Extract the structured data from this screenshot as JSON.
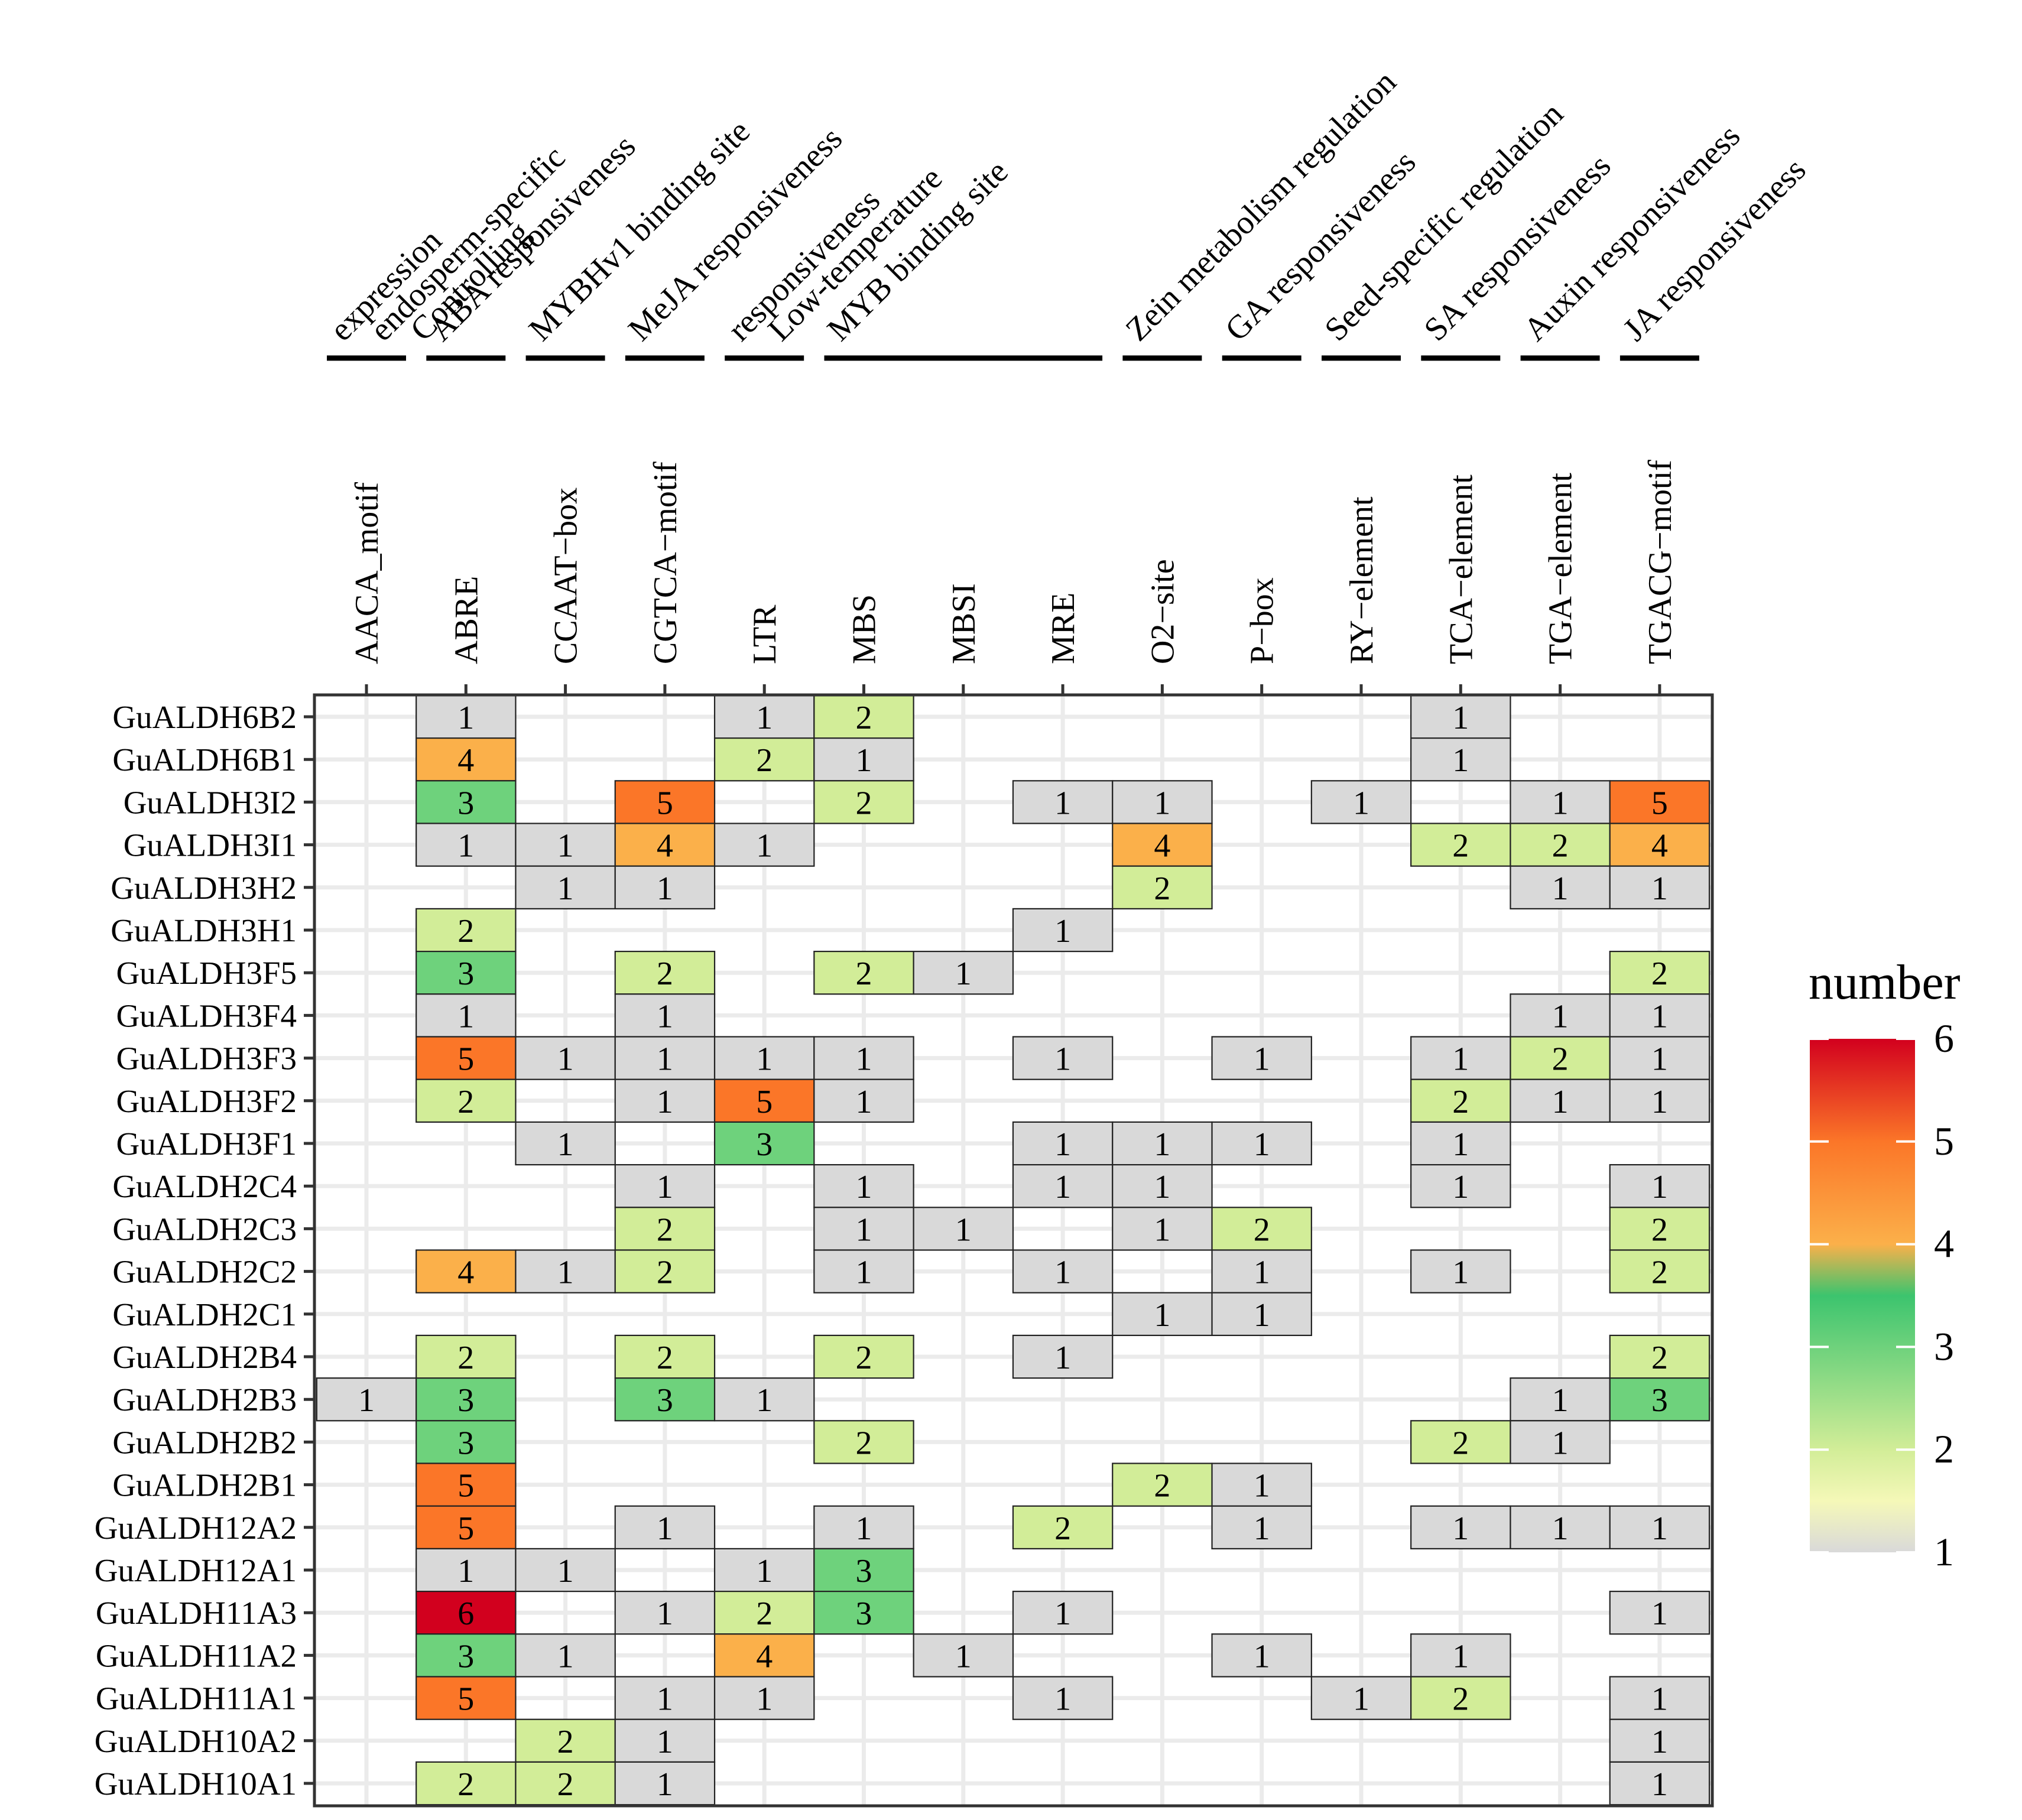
{
  "chart_data": {
    "type": "heatmap",
    "title": "",
    "xlabel": "",
    "ylabel": "",
    "columns": [
      "AACA_motif",
      "ABRE",
      "CCAAT-box",
      "CGTCA-motif",
      "LTR",
      "MBS",
      "MBSI",
      "MRE",
      "O2-site",
      "P-box",
      "RY-element",
      "TCA-element",
      "TGA-element",
      "TGACG-motif"
    ],
    "column_labels": [
      "AACA_motif",
      "ABRE",
      "CCAAT−box",
      "CGTCA−motif",
      "LTR",
      "MBS",
      "MBSI",
      "MRE",
      "O2−site",
      "P−box",
      "RY−element",
      "TCA−element",
      "TGA−element",
      "TGACG−motif"
    ],
    "groups": [
      {
        "label": "Controlling endosperm-specific expression",
        "lines": [
          "Controlling",
          "endosperm-specific",
          "expression"
        ],
        "col_start": 0,
        "col_end": 0
      },
      {
        "label": "ABA responsiveness",
        "lines": [
          "ABA responsiveness"
        ],
        "col_start": 1,
        "col_end": 1
      },
      {
        "label": "MYBHv1 binding site",
        "lines": [
          "MYBHv1 binding site"
        ],
        "col_start": 2,
        "col_end": 2
      },
      {
        "label": "MeJA responsiveness",
        "lines": [
          "MeJA responsiveness"
        ],
        "col_start": 3,
        "col_end": 3
      },
      {
        "label": "Low-temperature responsiveness",
        "lines": [
          "Low-temperature",
          "responsiveness"
        ],
        "col_start": 4,
        "col_end": 4
      },
      {
        "label": "MYB binding site",
        "lines": [
          "MYB binding site"
        ],
        "col_start": 5,
        "col_end": 7
      },
      {
        "label": "Zein metabolism regulation",
        "lines": [
          "Zein metabolism regulation"
        ],
        "col_start": 8,
        "col_end": 8
      },
      {
        "label": "GA responsiveness",
        "lines": [
          "GA responsiveness"
        ],
        "col_start": 9,
        "col_end": 9
      },
      {
        "label": "Seed-specific regulation",
        "lines": [
          "Seed-specific regulation"
        ],
        "col_start": 10,
        "col_end": 10
      },
      {
        "label": "SA responsiveness",
        "lines": [
          "SA responsiveness"
        ],
        "col_start": 11,
        "col_end": 11
      },
      {
        "label": "Auxin responsiveness",
        "lines": [
          "Auxin responsiveness"
        ],
        "col_start": 12,
        "col_end": 12
      },
      {
        "label": "JA responsiveness",
        "lines": [
          "JA responsiveness"
        ],
        "col_start": 13,
        "col_end": 13
      }
    ],
    "rows": [
      "GuALDH6B2",
      "GuALDH6B1",
      "GuALDH3I2",
      "GuALDH3I1",
      "GuALDH3H2",
      "GuALDH3H1",
      "GuALDH3F5",
      "GuALDH3F4",
      "GuALDH3F3",
      "GuALDH3F2",
      "GuALDH3F1",
      "GuALDH2C4",
      "GuALDH2C3",
      "GuALDH2C2",
      "GuALDH2C1",
      "GuALDH2B4",
      "GuALDH2B3",
      "GuALDH2B2",
      "GuALDH2B1",
      "GuALDH12A2",
      "GuALDH12A1",
      "GuALDH11A3",
      "GuALDH11A2",
      "GuALDH11A1",
      "GuALDH10A2",
      "GuALDH10A1"
    ],
    "values": [
      [
        null,
        1,
        null,
        null,
        1,
        2,
        null,
        null,
        null,
        null,
        null,
        1,
        null,
        null
      ],
      [
        null,
        4,
        null,
        null,
        2,
        1,
        null,
        null,
        null,
        null,
        null,
        1,
        null,
        null
      ],
      [
        null,
        3,
        null,
        5,
        null,
        2,
        null,
        1,
        1,
        null,
        1,
        null,
        1,
        5
      ],
      [
        null,
        1,
        1,
        4,
        1,
        null,
        null,
        null,
        4,
        null,
        null,
        2,
        2,
        4
      ],
      [
        null,
        null,
        1,
        1,
        null,
        null,
        null,
        null,
        2,
        null,
        null,
        null,
        1,
        1
      ],
      [
        null,
        2,
        null,
        null,
        null,
        null,
        null,
        1,
        null,
        null,
        null,
        null,
        null,
        null
      ],
      [
        null,
        3,
        null,
        2,
        null,
        2,
        1,
        null,
        null,
        null,
        null,
        null,
        null,
        2
      ],
      [
        null,
        1,
        null,
        1,
        null,
        null,
        null,
        null,
        null,
        null,
        null,
        null,
        1,
        1
      ],
      [
        null,
        5,
        1,
        1,
        1,
        1,
        null,
        1,
        null,
        1,
        null,
        1,
        2,
        1
      ],
      [
        null,
        2,
        null,
        1,
        5,
        1,
        null,
        null,
        null,
        null,
        null,
        2,
        1,
        1
      ],
      [
        null,
        null,
        1,
        null,
        3,
        null,
        null,
        1,
        1,
        1,
        null,
        1,
        null,
        null
      ],
      [
        null,
        null,
        null,
        1,
        null,
        1,
        null,
        1,
        1,
        null,
        null,
        1,
        null,
        1
      ],
      [
        null,
        null,
        null,
        2,
        null,
        1,
        1,
        null,
        1,
        2,
        null,
        null,
        null,
        2
      ],
      [
        null,
        4,
        1,
        2,
        null,
        1,
        null,
        1,
        null,
        1,
        null,
        1,
        null,
        2
      ],
      [
        null,
        null,
        null,
        null,
        null,
        null,
        null,
        null,
        1,
        1,
        null,
        null,
        null,
        null
      ],
      [
        null,
        2,
        null,
        2,
        null,
        2,
        null,
        1,
        null,
        null,
        null,
        null,
        null,
        2
      ],
      [
        1,
        3,
        null,
        3,
        1,
        null,
        null,
        null,
        null,
        null,
        null,
        null,
        1,
        3
      ],
      [
        null,
        3,
        null,
        null,
        null,
        2,
        null,
        null,
        null,
        null,
        null,
        2,
        1,
        null
      ],
      [
        null,
        5,
        null,
        null,
        null,
        null,
        null,
        null,
        2,
        1,
        null,
        null,
        null,
        null
      ],
      [
        null,
        5,
        null,
        1,
        null,
        1,
        null,
        2,
        null,
        1,
        null,
        1,
        1,
        1
      ],
      [
        null,
        1,
        1,
        null,
        1,
        3,
        null,
        null,
        null,
        null,
        null,
        null,
        null,
        null
      ],
      [
        null,
        6,
        null,
        1,
        2,
        3,
        null,
        1,
        null,
        null,
        null,
        null,
        null,
        1
      ],
      [
        null,
        3,
        1,
        null,
        4,
        null,
        1,
        null,
        null,
        1,
        null,
        1,
        null,
        null
      ],
      [
        null,
        5,
        null,
        1,
        1,
        null,
        null,
        1,
        null,
        null,
        1,
        2,
        null,
        1
      ],
      [
        null,
        null,
        2,
        1,
        null,
        null,
        null,
        null,
        null,
        null,
        null,
        null,
        null,
        1
      ],
      [
        null,
        2,
        2,
        1,
        null,
        null,
        null,
        null,
        null,
        null,
        null,
        null,
        null,
        1
      ]
    ],
    "legend": {
      "title": "number",
      "ticks": [
        1,
        2,
        3,
        4,
        5,
        6
      ],
      "range": [
        1,
        6
      ],
      "placement": "right"
    },
    "colors": {
      "scale": [
        "#d9d9d9",
        "#f5f8b8",
        "#d2ed98",
        "#3cc46e",
        "#fbb04a",
        "#fb7628",
        "#d2001e"
      ],
      "scale_stops": [
        1,
        1.5,
        2,
        3.5,
        4,
        5,
        6
      ],
      "grid": "#ebebeb",
      "border": "#333333",
      "panel_background": "#ffffff"
    }
  }
}
